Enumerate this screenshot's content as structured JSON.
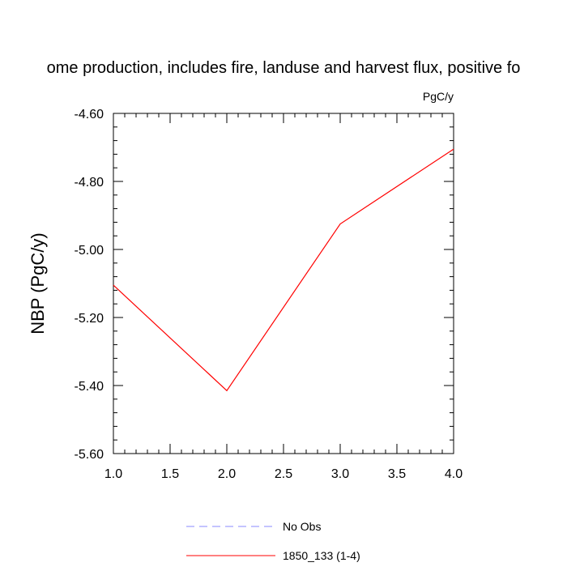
{
  "chart_data": {
    "type": "line",
    "title": "ome production, includes fire, landuse and harvest flux, positive fo",
    "units": "PgC/y",
    "ylabel": "NBP  (PgC/y)",
    "xlabel": "",
    "xlim": [
      1.0,
      4.0
    ],
    "ylim": [
      -5.6,
      -4.6
    ],
    "x_ticks": [
      "1.0",
      "1.5",
      "2.0",
      "2.5",
      "3.0",
      "3.5",
      "4.0"
    ],
    "y_ticks": [
      "-4.60",
      "-4.80",
      "-5.00",
      "-5.20",
      "-5.40",
      "-5.60"
    ],
    "grid": false,
    "legend_position": "bottom",
    "series": [
      {
        "name": "No Obs",
        "color": "#8888ff",
        "dash": "dashed",
        "x": [],
        "y": []
      },
      {
        "name": "1850_133 (1-4)",
        "color": "#ff0000",
        "dash": "solid",
        "x": [
          1.0,
          2.0,
          3.0,
          4.0
        ],
        "y": [
          -5.105,
          -5.415,
          -4.925,
          -4.705
        ]
      }
    ]
  }
}
